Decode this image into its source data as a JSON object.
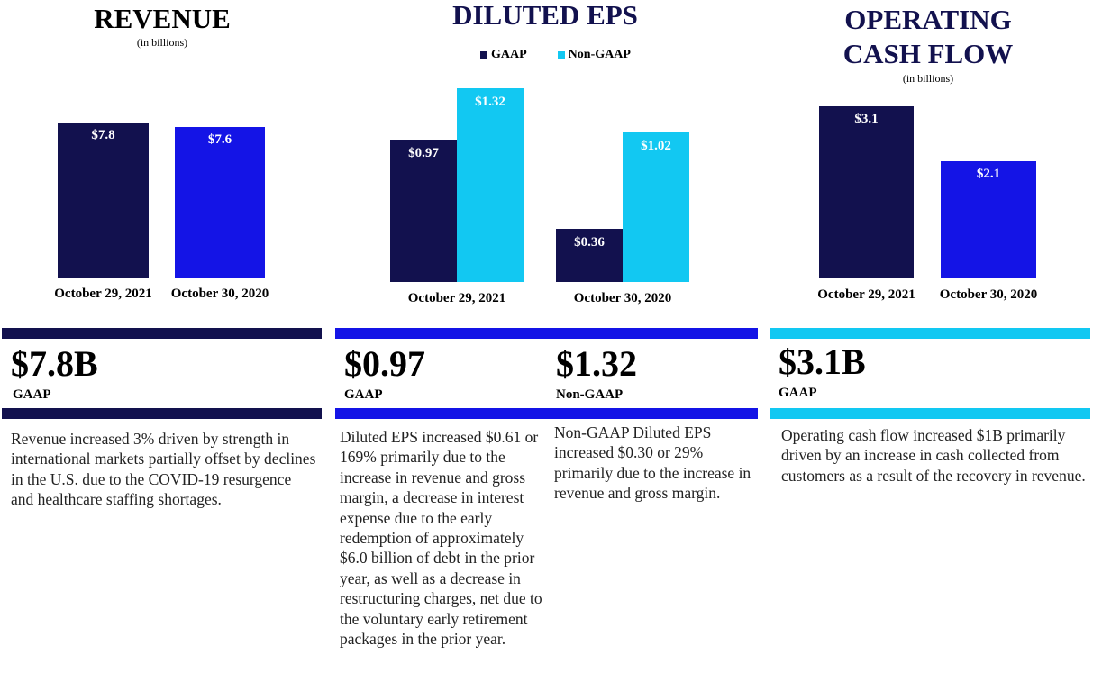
{
  "colors": {
    "navy": "#12114e",
    "blue": "#1414e6",
    "cyan": "#12c8f2"
  },
  "revenue": {
    "title": "REVENUE",
    "subtitle": "(in billions)",
    "big_value": "$7.8B",
    "big_label": "GAAP",
    "description": "Revenue increased 3% driven by strength in international markets partially offset by declines in the U.S. due to the COVID-19 resurgence and healthcare staffing shortages."
  },
  "eps": {
    "title": "DILUTED EPS",
    "legend": [
      "GAAP",
      "Non-GAAP"
    ],
    "gaap_value": "$0.97",
    "gaap_label": "GAAP",
    "nongaap_value": "$1.32",
    "nongaap_label": "Non-GAAP",
    "gaap_description": "Diluted EPS increased $0.61 or 169% primarily due to the increase in revenue and gross margin, a decrease in interest expense due to the early redemption of approximately $6.0 billion of debt in the prior year, as well as a decrease in restructuring charges, net due to the voluntary early retirement packages in the prior year.",
    "nongaap_description": "Non-GAAP Diluted EPS increased $0.30 or 29% primarily due to the increase in revenue and gross margin."
  },
  "ocf": {
    "title_line1": "OPERATING",
    "title_line2": "CASH FLOW",
    "subtitle": "(in billions)",
    "big_value": "$3.1B",
    "big_label": "GAAP",
    "description": "Operating cash flow increased $1B primarily driven by an increase in cash collected from customers as a result of the recovery in revenue."
  },
  "chart_data": [
    {
      "type": "bar",
      "title": "REVENUE",
      "subtitle": "(in billions)",
      "categories": [
        "October 29, 2021",
        "October 30, 2020"
      ],
      "values": [
        7.8,
        7.6
      ],
      "value_labels": [
        "$7.8",
        "$7.6"
      ],
      "colors": [
        "#12114e",
        "#1414e6"
      ],
      "ylim": [
        0,
        8.5
      ]
    },
    {
      "type": "bar",
      "title": "DILUTED EPS",
      "categories": [
        "October 29, 2021",
        "October 30, 2020"
      ],
      "series": [
        {
          "name": "GAAP",
          "values": [
            0.97,
            0.36
          ],
          "value_labels": [
            "$0.97",
            "$0.36"
          ],
          "color": "#12114e"
        },
        {
          "name": "Non-GAAP",
          "values": [
            1.32,
            1.02
          ],
          "value_labels": [
            "$1.32",
            "$1.02"
          ],
          "color": "#12c8f2"
        }
      ],
      "ylim": [
        0,
        1.45
      ]
    },
    {
      "type": "bar",
      "title": "OPERATING CASH FLOW",
      "subtitle": "(in billions)",
      "categories": [
        "October 29, 2021",
        "October 30, 2020"
      ],
      "values": [
        3.1,
        2.1
      ],
      "value_labels": [
        "$3.1",
        "$2.1"
      ],
      "colors": [
        "#12114e",
        "#1414e6"
      ],
      "ylim": [
        0,
        3.4
      ]
    }
  ]
}
